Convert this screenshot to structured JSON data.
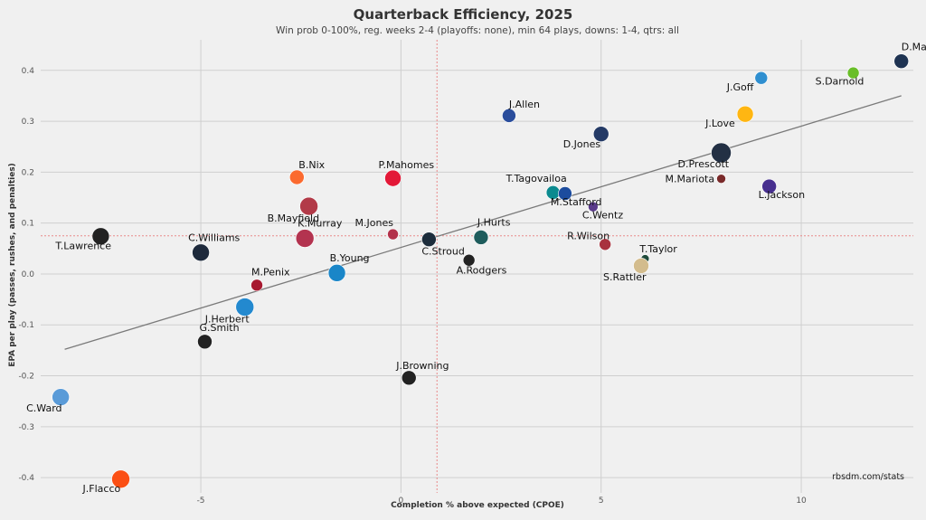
{
  "chart_data": {
    "type": "scatter",
    "title": "Quarterback Efficiency, 2025",
    "subtitle": "Win prob 0-100%, reg. weeks 2-4 (playoffs: none), min 64 plays, downs: 1-4, qtrs: all",
    "xlabel": "Completion % above expected (CPOE)",
    "ylabel": "EPA per play (passes, rushes, and penalties)",
    "credit": "rbsdm.com/stats",
    "xlim": [
      -9,
      12.8
    ],
    "ylim": [
      -0.43,
      0.46
    ],
    "x_ticks": [
      -5,
      0,
      5,
      10
    ],
    "y_ticks": [
      -0.4,
      -0.3,
      -0.2,
      -0.1,
      0.0,
      0.1,
      0.2,
      0.3,
      0.4
    ],
    "x_tick_labels": [
      "-5",
      "0",
      "5",
      "10"
    ],
    "y_tick_labels": [
      "-0.4",
      "-0.3",
      "-0.2",
      "-0.1",
      "0.0",
      "0.1",
      "0.2",
      "0.3",
      "0.4"
    ],
    "grid": true,
    "mean_lines": {
      "x": 0.9,
      "y": 0.075
    },
    "trend_line": {
      "x1": -8.4,
      "y1": -0.148,
      "x2": 12.5,
      "y2": 0.35
    },
    "points": [
      {
        "name": "D.Maye",
        "x": 12.5,
        "y": 0.418,
        "color": "#1e3352",
        "r": 8,
        "label_dx": 0,
        "label_dy": -12
      },
      {
        "name": "S.Darnold",
        "x": 11.3,
        "y": 0.395,
        "color": "#69be28",
        "r": 6.5,
        "label_dx": -42,
        "label_dy": 13
      },
      {
        "name": "J.Goff",
        "x": 9.0,
        "y": 0.385,
        "color": "#2f8fd0",
        "r": 7,
        "label_dx": -38,
        "label_dy": 14
      },
      {
        "name": "J.Love",
        "x": 8.6,
        "y": 0.314,
        "color": "#ffb612",
        "r": 9,
        "label_dx": -44,
        "label_dy": 14
      },
      {
        "name": "D.Prescott",
        "x": 8.0,
        "y": 0.238,
        "color": "#233044",
        "r": 11,
        "label_dx": -48,
        "label_dy": 16
      },
      {
        "name": "L.Jackson",
        "x": 9.2,
        "y": 0.172,
        "color": "#472f8f",
        "r": 8,
        "label_dx": -12,
        "label_dy": 13
      },
      {
        "name": "M.Mariota",
        "x": 8.0,
        "y": 0.187,
        "color": "#7a2a2a",
        "r": 5,
        "label_dx": -62,
        "label_dy": 4
      },
      {
        "name": "J.Allen",
        "x": 2.7,
        "y": 0.311,
        "color": "#2a4d9c",
        "r": 7.5,
        "label_dx": 0,
        "label_dy": -9
      },
      {
        "name": "D.Jones",
        "x": 5.0,
        "y": 0.275,
        "color": "#243a66",
        "r": 8.5,
        "label_dx": -42,
        "label_dy": 15
      },
      {
        "name": "P.Mahomes",
        "x": -0.2,
        "y": 0.188,
        "color": "#e31837",
        "r": 9,
        "label_dx": -16,
        "label_dy": -11
      },
      {
        "name": "B.Nix",
        "x": -2.6,
        "y": 0.19,
        "color": "#fb6a2f",
        "r": 8,
        "label_dx": 2,
        "label_dy": -10
      },
      {
        "name": "B.Mayfield",
        "x": -2.3,
        "y": 0.133,
        "color": "#b23a48",
        "r": 10,
        "label_dx": -46,
        "label_dy": 17
      },
      {
        "name": "K.Murray",
        "x": -2.4,
        "y": 0.07,
        "color": "#b3334f",
        "r": 10,
        "label_dx": -8,
        "label_dy": -13
      },
      {
        "name": "M.Jones",
        "x": -0.2,
        "y": 0.078,
        "color": "#b3314a",
        "r": 6,
        "label_dx": -42,
        "label_dy": -9
      },
      {
        "name": "T.Tagovailoa",
        "x": 3.8,
        "y": 0.16,
        "color": "#0b8a8f",
        "r": 7.5,
        "label_dx": -52,
        "label_dy": -12
      },
      {
        "name": "M.Stafford",
        "x": 4.1,
        "y": 0.158,
        "color": "#1c4c9e",
        "r": 7.5,
        "label_dx": -16,
        "label_dy": 13
      },
      {
        "name": "C.Wentz",
        "x": 4.8,
        "y": 0.132,
        "color": "#5a3a8a",
        "r": 5.5,
        "label_dx": -12,
        "label_dy": 13
      },
      {
        "name": "T.Lawrence",
        "x": -7.5,
        "y": 0.074,
        "color": "#222222",
        "r": 9.5,
        "label_dx": -50,
        "label_dy": 14
      },
      {
        "name": "C.Williams",
        "x": -5.0,
        "y": 0.042,
        "color": "#1e2a3c",
        "r": 9.5,
        "label_dx": -14,
        "label_dy": -13
      },
      {
        "name": "C.Stroud",
        "x": 0.7,
        "y": 0.068,
        "color": "#1d2d3c",
        "r": 8,
        "label_dx": -8,
        "label_dy": 17
      },
      {
        "name": "J.Hurts",
        "x": 2.0,
        "y": 0.072,
        "color": "#1e5c5c",
        "r": 8,
        "label_dx": -4,
        "label_dy": -13
      },
      {
        "name": "A.Rodgers",
        "x": 1.7,
        "y": 0.027,
        "color": "#222222",
        "r": 6.5,
        "label_dx": -14,
        "label_dy": 15
      },
      {
        "name": "R.Wilson",
        "x": 5.1,
        "y": 0.058,
        "color": "#a8323e",
        "r": 6.5,
        "label_dx": -42,
        "label_dy": -6
      },
      {
        "name": "T.Taylor",
        "x": 6.1,
        "y": 0.03,
        "color": "#1e4a3a",
        "r": 4.5,
        "label_dx": -6,
        "label_dy": -7
      },
      {
        "name": "S.Rattler",
        "x": 6.0,
        "y": 0.016,
        "color": "#d3bc8d",
        "r": 8.5,
        "label_dx": -42,
        "label_dy": 16
      },
      {
        "name": "B.Young",
        "x": -1.6,
        "y": 0.002,
        "color": "#1a86c8",
        "r": 9.5,
        "label_dx": -8,
        "label_dy": -13
      },
      {
        "name": "M.Penix",
        "x": -3.6,
        "y": -0.022,
        "color": "#a71930",
        "r": 6.5,
        "label_dx": -6,
        "label_dy": -11
      },
      {
        "name": "J.Herbert",
        "x": -3.9,
        "y": -0.065,
        "color": "#2389cf",
        "r": 10,
        "label_dx": -44,
        "label_dy": 17
      },
      {
        "name": "G.Smith",
        "x": -4.9,
        "y": -0.133,
        "color": "#222222",
        "r": 8,
        "label_dx": -6,
        "label_dy": -12
      },
      {
        "name": "J.Browning",
        "x": 0.2,
        "y": -0.204,
        "color": "#222222",
        "r": 8,
        "label_dx": -14,
        "label_dy": -10
      },
      {
        "name": "C.Ward",
        "x": -8.5,
        "y": -0.242,
        "color": "#5a9bd8",
        "r": 9.5,
        "label_dx": -38,
        "label_dy": 16
      },
      {
        "name": "J.Flacco",
        "x": -7.0,
        "y": -0.403,
        "color": "#fb4f14",
        "r": 10,
        "label_dx": -42,
        "label_dy": 14
      }
    ]
  }
}
